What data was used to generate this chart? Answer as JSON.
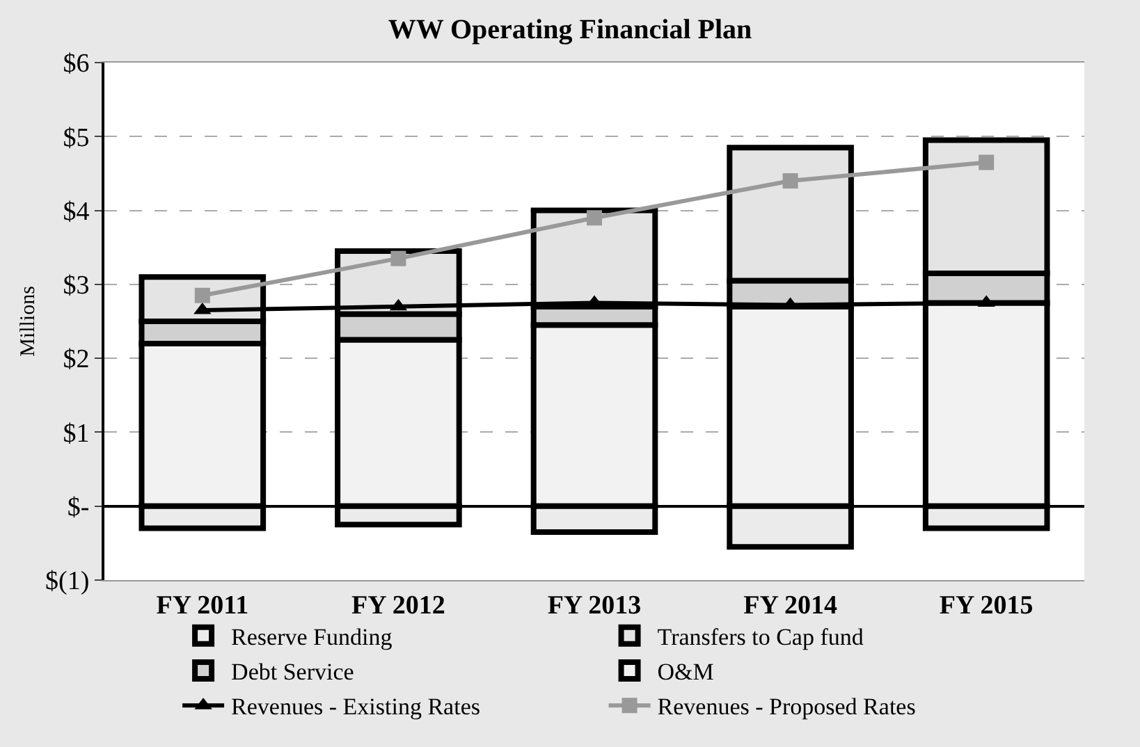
{
  "chart_data": {
    "type": "bar",
    "stacked": true,
    "title": "WW Operating Financial Plan",
    "ylabel": "Millions",
    "categories": [
      "FY 2011",
      "FY 2012",
      "FY 2013",
      "FY 2014",
      "FY 2015"
    ],
    "series": [
      {
        "name": "O&M",
        "color": "#f2f2f2",
        "values": [
          2.2,
          2.25,
          2.45,
          2.7,
          2.75
        ]
      },
      {
        "name": "Debt Service",
        "color": "#d0d0d0",
        "values": [
          0.3,
          0.35,
          0.25,
          0.35,
          0.4
        ]
      },
      {
        "name": "Transfers to Cap fund",
        "color": "#e4e4e4",
        "values": [
          0.6,
          0.85,
          1.3,
          1.8,
          1.8
        ]
      },
      {
        "name": "Reserve Funding",
        "color": "#ebebeb",
        "values": [
          -0.3,
          -0.25,
          -0.35,
          -0.55,
          -0.3
        ]
      },
      {
        "name": "Revenues - Existing Rates",
        "type": "line",
        "color": "#000000",
        "marker": "triangle",
        "values": [
          2.65,
          2.7,
          2.75,
          2.72,
          2.75
        ]
      },
      {
        "name": "Revenues - Proposed Rates",
        "type": "line",
        "color": "#999999",
        "marker": "square",
        "values": [
          2.85,
          3.35,
          3.9,
          4.4,
          4.65
        ]
      }
    ],
    "ylim": [
      -1,
      6
    ],
    "yticks": [
      {
        "value": -1,
        "label": "$(1)"
      },
      {
        "value": 0,
        "label": "$-"
      },
      {
        "value": 1,
        "label": "$1"
      },
      {
        "value": 2,
        "label": "$2"
      },
      {
        "value": 3,
        "label": "$3"
      },
      {
        "value": 4,
        "label": "$4"
      },
      {
        "value": 5,
        "label": "$5"
      },
      {
        "value": 6,
        "label": "$6"
      }
    ],
    "grid": "y",
    "legend": "bottom"
  }
}
